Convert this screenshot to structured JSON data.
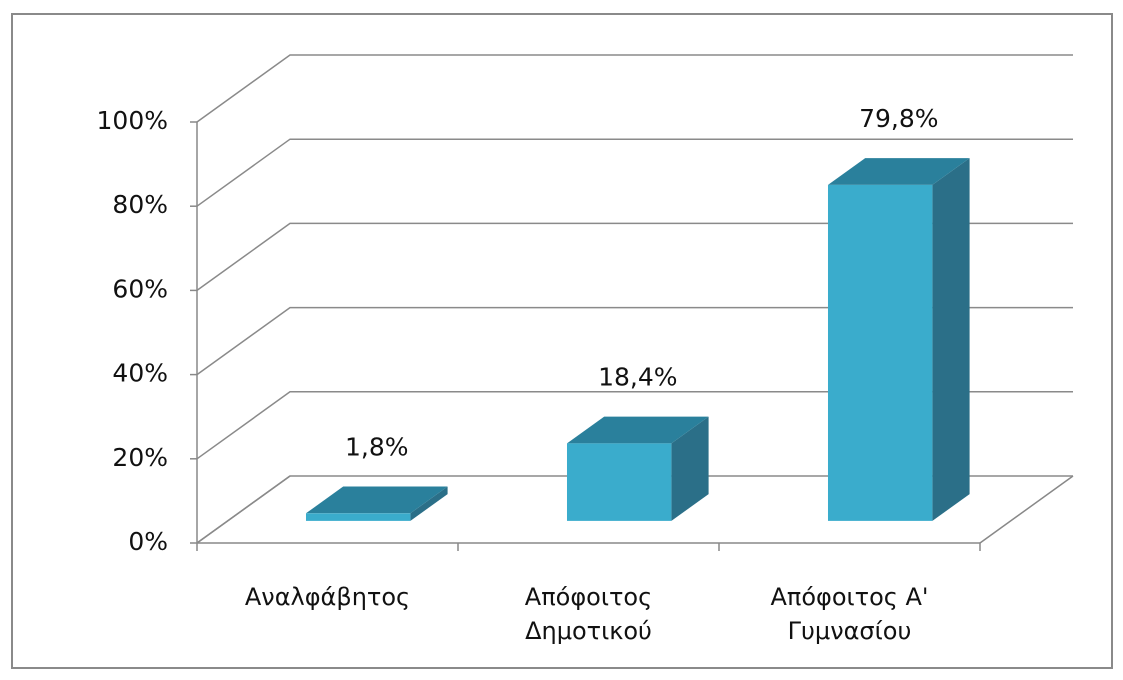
{
  "chart_data": {
    "type": "bar3d",
    "categories": [
      [
        "Αναλφάβητος"
      ],
      [
        "Απόφοιτος",
        "Δημοτικού"
      ],
      [
        "Απόφοιτος Α'",
        "Γυμνασίου"
      ]
    ],
    "values": [
      1.8,
      18.4,
      79.8
    ],
    "value_labels": [
      "1,8%",
      "18,4%",
      "79,8%"
    ],
    "color": "#3aaccc",
    "ylim": [
      0,
      100
    ],
    "yticks": [
      {
        "value": 0,
        "label": "0%"
      },
      {
        "value": 20,
        "label": "20%"
      },
      {
        "value": 40,
        "label": "40%"
      },
      {
        "value": 60,
        "label": "60%"
      },
      {
        "value": 80,
        "label": "80%"
      },
      {
        "value": 100,
        "label": "100%"
      }
    ],
    "grid": true
  }
}
